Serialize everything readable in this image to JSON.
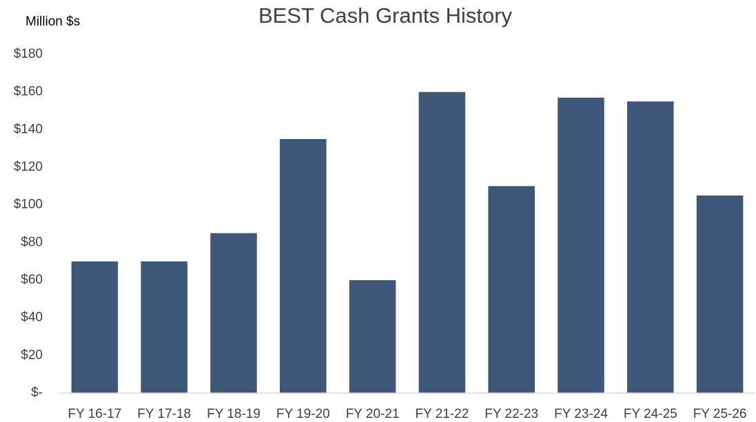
{
  "chart_data": {
    "type": "bar",
    "title": "BEST Cash Grants History",
    "y_axis_label": "Million $s",
    "categories": [
      "FY 16-17",
      "FY 17-18",
      "FY 18-19",
      "FY 19-20",
      "FY 20-21",
      "FY 21-22",
      "FY 22-23",
      "FY 23-24",
      "FY 24-25",
      "FY 25-26"
    ],
    "values": [
      70,
      70,
      85,
      135,
      60,
      160,
      110,
      157,
      155,
      105
    ],
    "color": "#3f5879",
    "ylim": [
      0,
      180
    ],
    "yticks": [
      {
        "value": 0,
        "label": "$-"
      },
      {
        "value": 20,
        "label": "$20"
      },
      {
        "value": 40,
        "label": "$40"
      },
      {
        "value": 60,
        "label": "$60"
      },
      {
        "value": 80,
        "label": "$80"
      },
      {
        "value": 100,
        "label": "$100"
      },
      {
        "value": 120,
        "label": "$120"
      },
      {
        "value": 140,
        "label": "$140"
      },
      {
        "value": 160,
        "label": "$160"
      },
      {
        "value": 180,
        "label": "$180"
      }
    ],
    "grid": false
  }
}
